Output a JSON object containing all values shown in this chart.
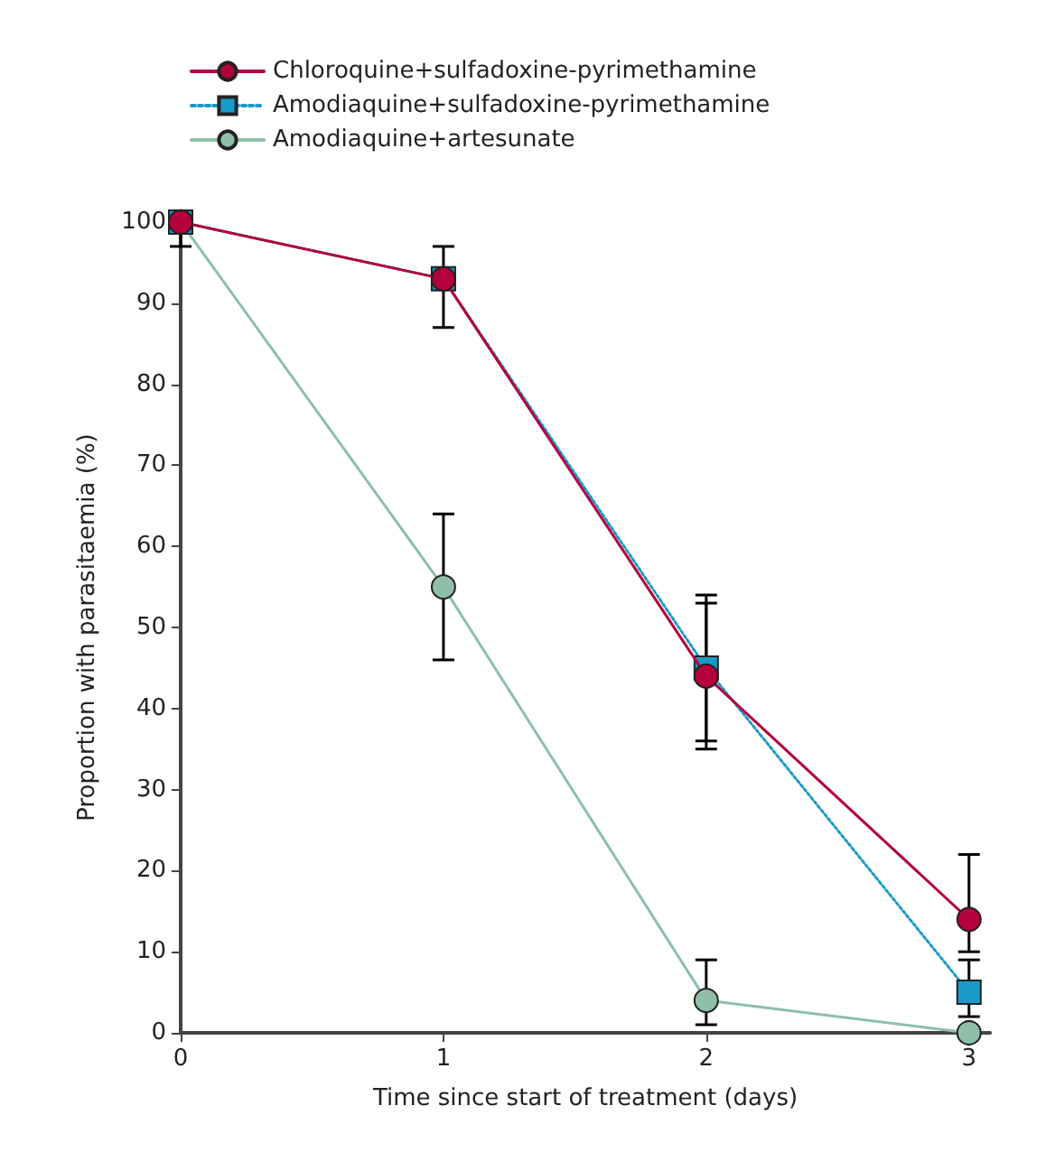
{
  "chart_data": {
    "type": "line",
    "xlabel": "Time since start of treatment (days)",
    "ylabel": "Proportion with parasitaemia (%)",
    "x": [
      0,
      1,
      2,
      3
    ],
    "xlim": [
      0,
      3.08
    ],
    "xticks": [
      0,
      1,
      2,
      3
    ],
    "ylim": [
      0,
      100
    ],
    "yticks": [
      0,
      10,
      20,
      30,
      40,
      50,
      60,
      70,
      80,
      90,
      100
    ],
    "grid": false,
    "legend": "top left",
    "series": [
      {
        "name": "Chloroquine+sulfadoxine-pyrimethamine",
        "color": "#b5003c",
        "marker": "circle",
        "line_style": "solid",
        "values": [
          100,
          93,
          44,
          14
        ],
        "errors": [
          [
            97,
            100
          ],
          [
            87,
            97
          ],
          [
            35,
            53
          ],
          [
            10,
            22
          ]
        ]
      },
      {
        "name": "Amodiaquine+sulfadoxine-pyrimethamine",
        "color": "#1a9ac9",
        "marker": "square",
        "line_style": "dotted",
        "values": [
          100,
          93,
          45,
          5
        ],
        "errors": [
          null,
          null,
          [
            36,
            54
          ],
          [
            2,
            9
          ]
        ]
      },
      {
        "name": "Amodiaquine+artesunate",
        "color": "#8fbfa8",
        "marker": "circle",
        "line_style": "solid",
        "values": [
          100,
          55,
          4,
          0
        ],
        "errors": [
          null,
          [
            46,
            64
          ],
          [
            1,
            9
          ],
          null
        ]
      }
    ]
  }
}
